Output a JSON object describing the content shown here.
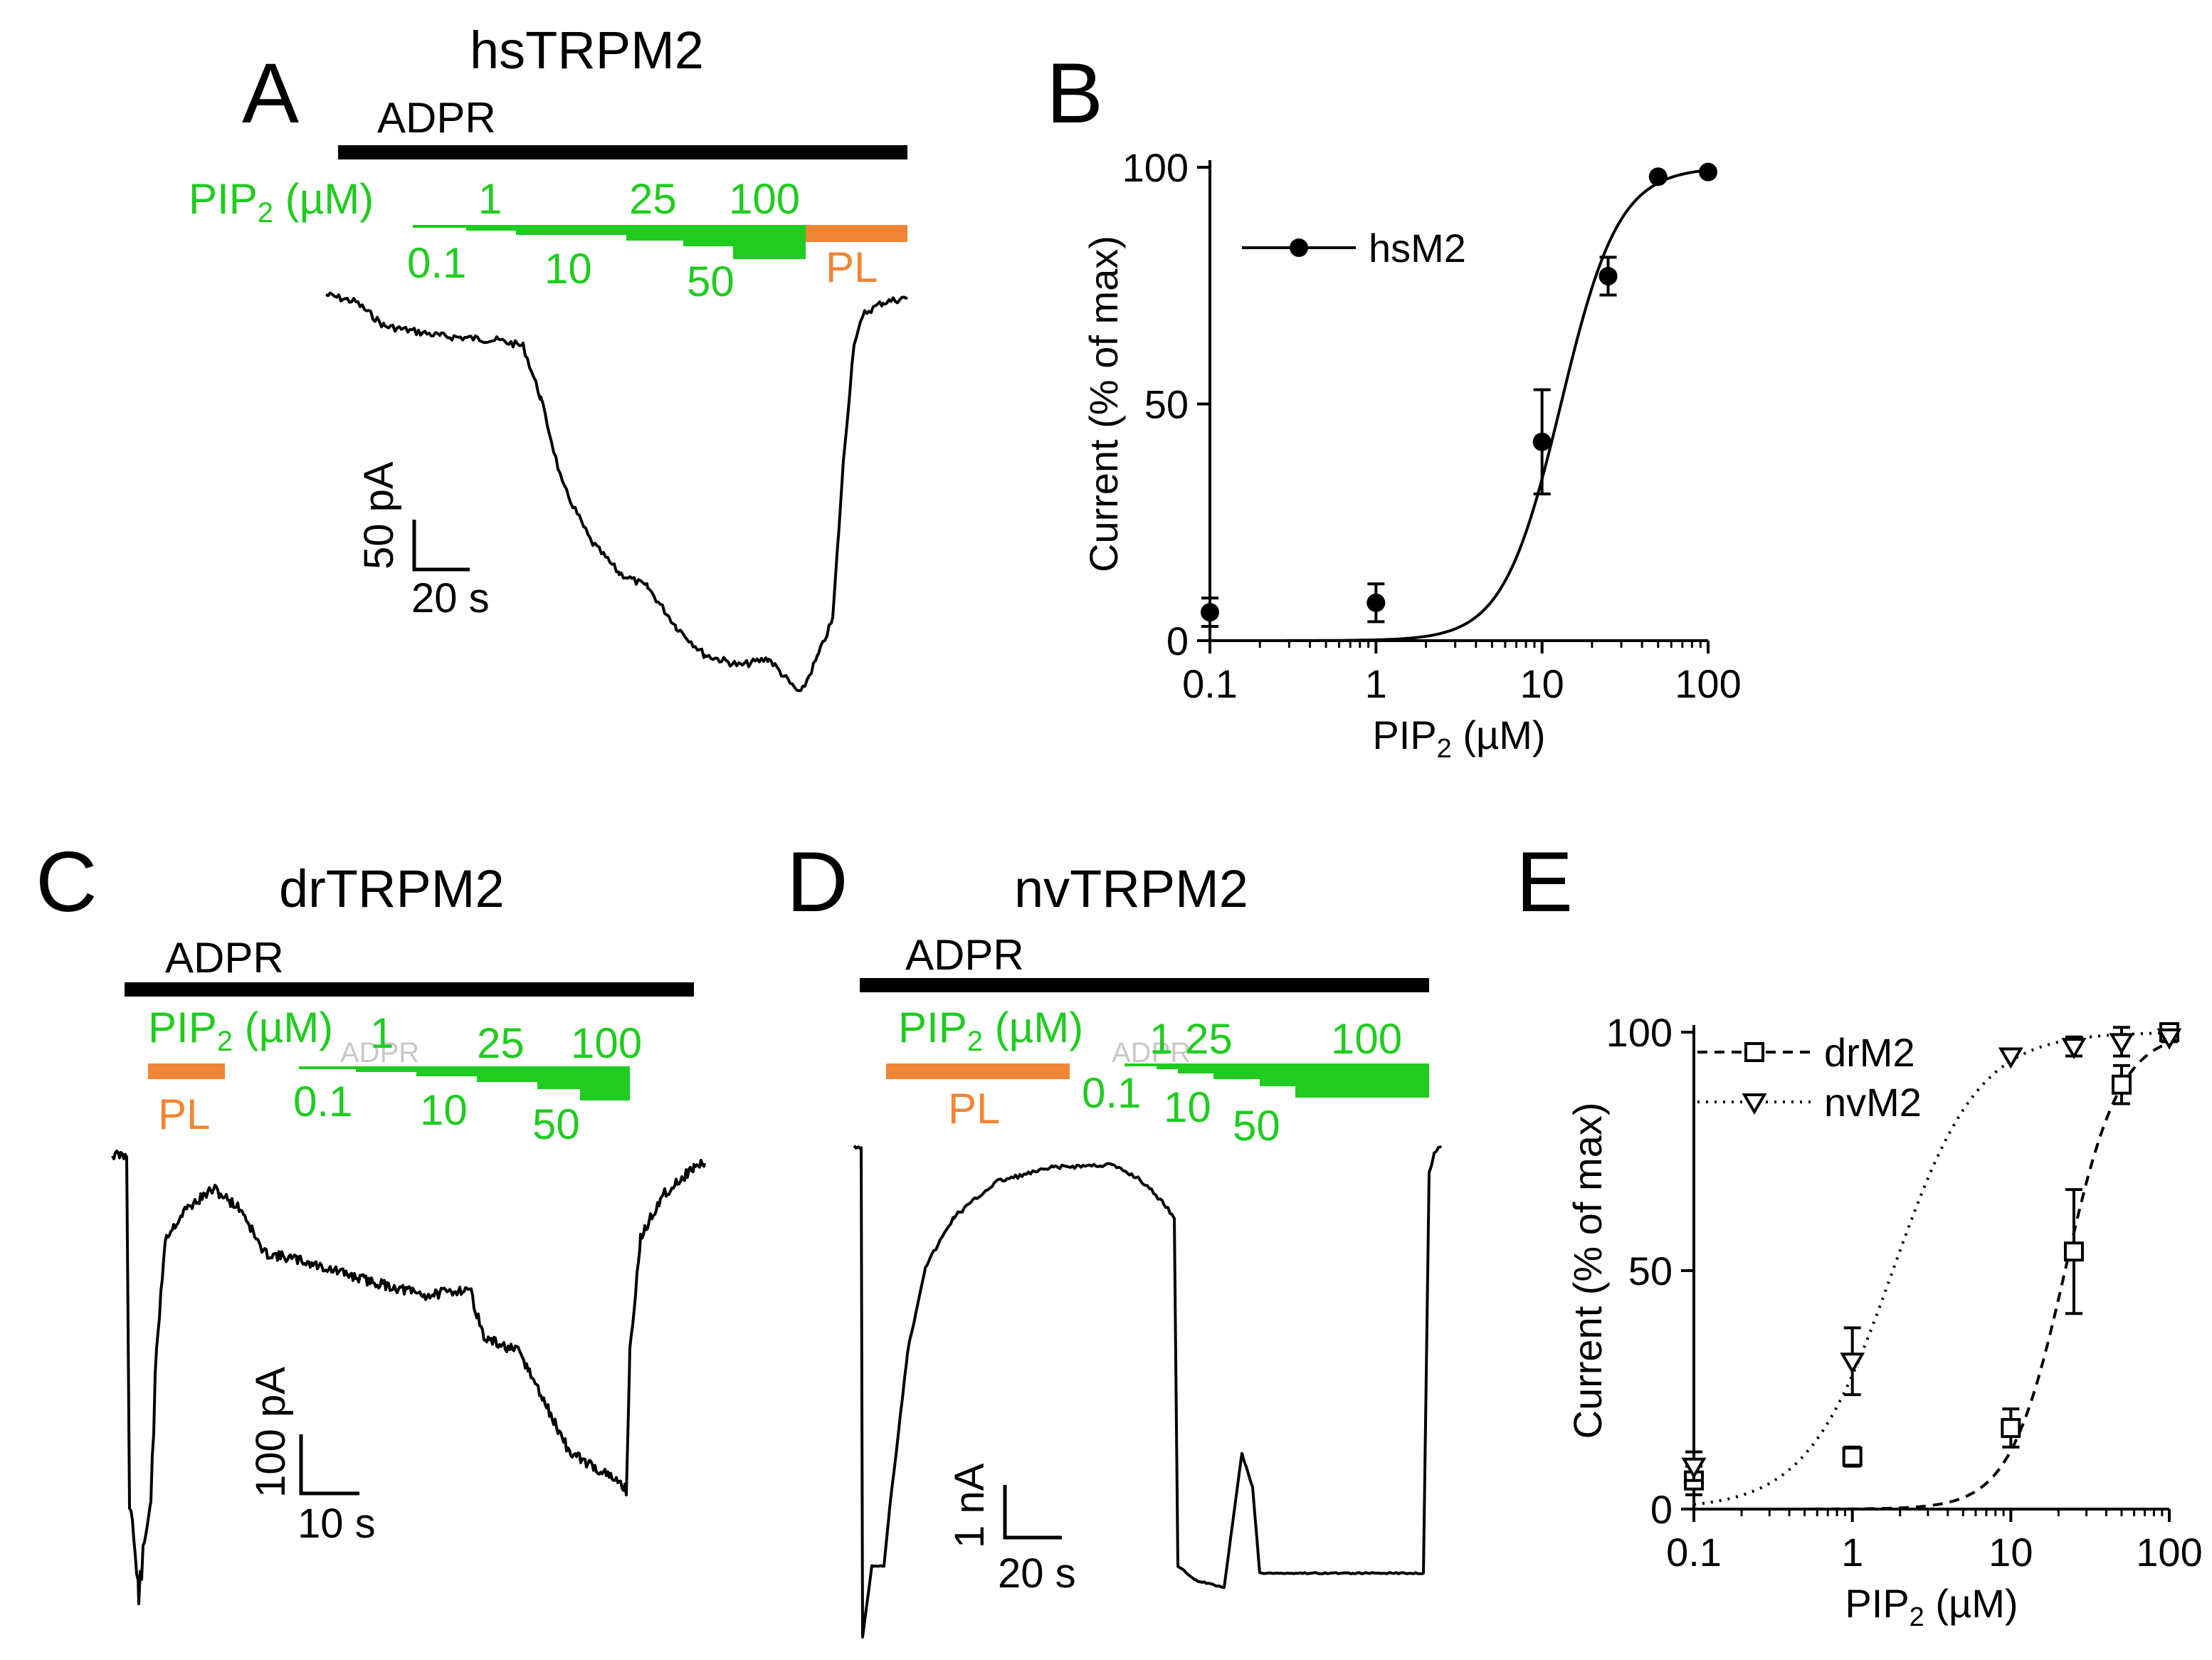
{
  "colors": {
    "black": "#000000",
    "green": "#1fcc1f",
    "orange": "#f08535",
    "gray": "#c8c8c8"
  },
  "panels": {
    "A": {
      "letter": "A",
      "title": "hsTRPM2",
      "adpr": "ADPR",
      "pip_label_main": "PIP",
      "pip_label_sub": "2",
      "pip_label_unit": " (µM)",
      "conc_top": [
        "1",
        "25",
        "100"
      ],
      "conc_bottom": [
        "0.1",
        "10",
        "50"
      ],
      "pl": "PL",
      "scale_y": "50 pA",
      "scale_x": "20 s"
    },
    "C": {
      "letter": "C",
      "title": "drTRPM2",
      "adpr": "ADPR",
      "pip_label_main": "PIP",
      "pip_label_sub": "2",
      "pip_label_unit": " (µM)",
      "ghost": "ADPR",
      "conc_top": [
        "1",
        "25",
        "100"
      ],
      "conc_bottom": [
        "0.1",
        "10",
        "50"
      ],
      "pl": "PL",
      "scale_y": "100 pA",
      "scale_x": "10 s"
    },
    "D": {
      "letter": "D",
      "title": "nvTRPM2",
      "adpr": "ADPR",
      "pip_label_main": "PIP",
      "pip_label_sub": "2",
      "pip_label_unit": " (µM)",
      "ghost": "ADPR",
      "conc_top": [
        "1",
        "25",
        "100"
      ],
      "conc_bottom": [
        "0.1",
        "10",
        "50"
      ],
      "pl": "PL",
      "scale_y": "1 nA",
      "scale_x": "20 s"
    },
    "B_letter": "B",
    "E_letter": "E"
  },
  "chart_data": [
    {
      "panel": "B",
      "type": "scatter",
      "xscale": "log",
      "xlim": [
        0.1,
        100
      ],
      "ylim": [
        0,
        100
      ],
      "xticks": [
        "0.1",
        "1",
        "10",
        "100"
      ],
      "yticks": [
        "0",
        "50",
        "100"
      ],
      "xlabel_main": "PIP",
      "xlabel_sub": "2",
      "xlabel_unit": " (µM)",
      "ylabel": "Current (% of max)",
      "series": [
        {
          "name": "hsM2",
          "marker": "filled-circle",
          "line": "solid",
          "x": [
            0.1,
            1,
            10,
            25,
            50,
            100
          ],
          "y": [
            6,
            8,
            42,
            77,
            98,
            99
          ],
          "err": [
            3,
            4,
            11,
            4,
            0,
            0
          ],
          "fit": {
            "ec50": 13,
            "hill": 2.5
          }
        }
      ]
    },
    {
      "panel": "E",
      "type": "scatter",
      "xscale": "log",
      "xlim": [
        0.1,
        100
      ],
      "ylim": [
        0,
        100
      ],
      "xticks": [
        "0.1",
        "1",
        "10",
        "100"
      ],
      "yticks": [
        "0",
        "50",
        "100"
      ],
      "xlabel_main": "PIP",
      "xlabel_sub": "2",
      "xlabel_unit": " (µM)",
      "ylabel": "Current (% of max)",
      "series": [
        {
          "name": "drM2",
          "marker": "open-square",
          "line": "dashed",
          "x": [
            0.1,
            1,
            10,
            25,
            50,
            100
          ],
          "y": [
            6,
            11,
            17,
            54,
            89,
            100
          ],
          "err": [
            3,
            2,
            4,
            13,
            4,
            1
          ],
          "fit": {
            "ec50": 22,
            "hill": 2.5
          }
        },
        {
          "name": "nvM2",
          "marker": "open-triangle-down",
          "line": "dotted",
          "x": [
            0.1,
            1,
            10,
            25,
            50,
            100
          ],
          "y": [
            9,
            31,
            95,
            97,
            98,
            99
          ],
          "err": [
            3,
            7,
            0,
            2,
            3,
            1
          ],
          "fit": {
            "ec50": 1.8,
            "hill": 1.6
          }
        }
      ]
    }
  ]
}
